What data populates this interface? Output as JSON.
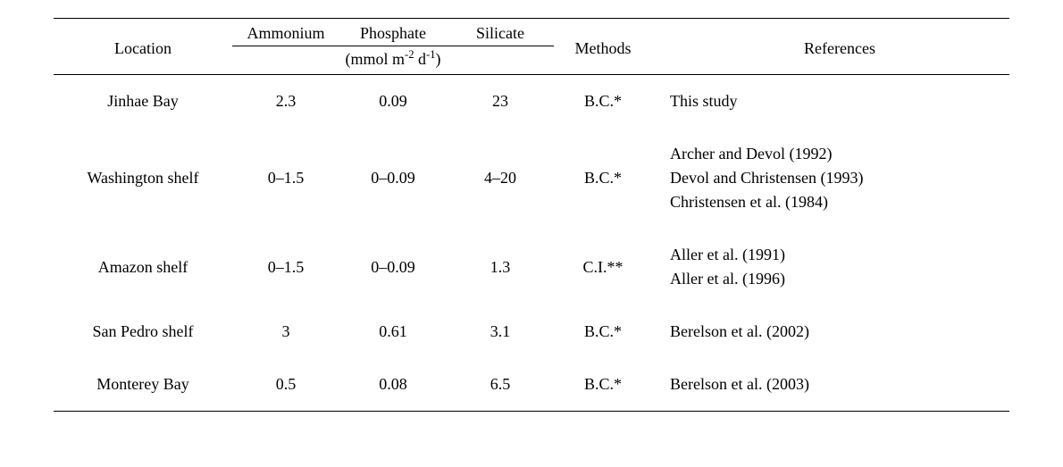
{
  "headers": {
    "location": "Location",
    "ammonium": "Ammonium",
    "phosphate": "Phosphate",
    "silicate": "Silicate",
    "methods": "Methods",
    "references": "References",
    "unit_prefix": "(mmol m",
    "unit_exp1": "-2",
    "unit_mid": " d",
    "unit_exp2": "-1",
    "unit_suffix": ")"
  },
  "rows": [
    {
      "location": "Jinhae Bay",
      "ammonium": "2.3",
      "phosphate": "0.09",
      "silicate": "23",
      "method": "B.C.*",
      "refs": [
        "This study"
      ]
    },
    {
      "location": "Washington shelf",
      "ammonium": "0–1.5",
      "phosphate": "0–0.09",
      "silicate": "4–20",
      "method": "B.C.*",
      "refs": [
        "Archer and Devol (1992)",
        "Devol and Christensen (1993)",
        "Christensen et al. (1984)"
      ]
    },
    {
      "location": "Amazon shelf",
      "ammonium": "0–1.5",
      "phosphate": "0–0.09",
      "silicate": "1.3",
      "method": "C.I.**",
      "refs": [
        "Aller et al. (1991)",
        "Aller et al. (1996)"
      ]
    },
    {
      "location": "San Pedro shelf",
      "ammonium": "3",
      "phosphate": "0.61",
      "silicate": "3.1",
      "method": "B.C.*",
      "refs": [
        "Berelson et al. (2002)"
      ]
    },
    {
      "location": "Monterey Bay",
      "ammonium": "0.5",
      "phosphate": "0.08",
      "silicate": "6.5",
      "method": "B.C.*",
      "refs": [
        "Berelson et al. (2003)"
      ]
    }
  ]
}
